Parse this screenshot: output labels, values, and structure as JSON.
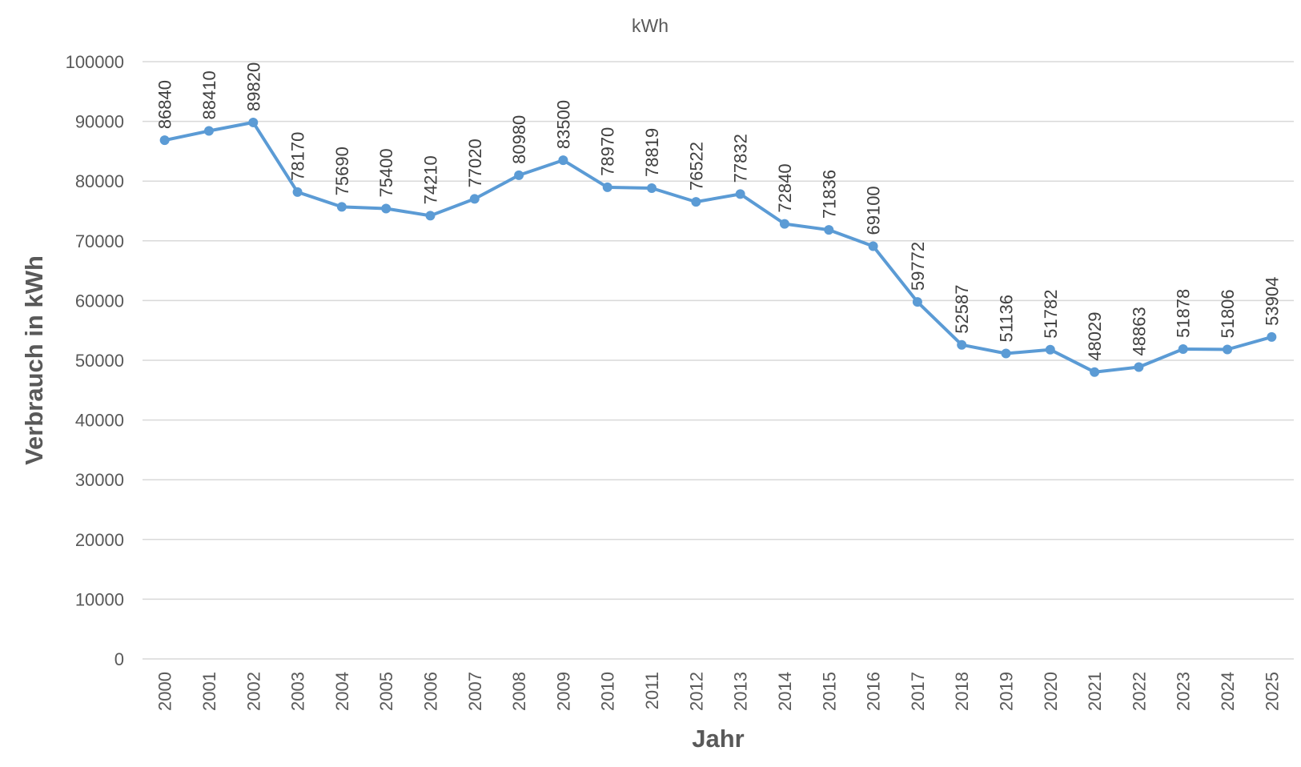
{
  "chart_data": {
    "type": "line",
    "title": "kWh",
    "xlabel": "Jahr",
    "ylabel": "Verbrauch in kWh",
    "ylim": [
      0,
      100000
    ],
    "ytick_step": 10000,
    "y_tick_labels": [
      "0",
      "10000",
      "20000",
      "30000",
      "40000",
      "50000",
      "60000",
      "70000",
      "80000",
      "90000",
      "100000"
    ],
    "grid": true,
    "legend": "none",
    "series_color": "#5B9BD5",
    "categories": [
      "2000",
      "2001",
      "2002",
      "2003",
      "2004",
      "2005",
      "2006",
      "2007",
      "2008",
      "2009",
      "2010",
      "2011",
      "2012",
      "2013",
      "2014",
      "2015",
      "2016",
      "2017",
      "2018",
      "2019",
      "2020",
      "2021",
      "2022",
      "2023",
      "2024",
      "2025"
    ],
    "series": [
      {
        "values": [
          86840,
          88410,
          89820,
          78170,
          75690,
          75400,
          74210,
          77020,
          80980,
          83500,
          78970,
          78819,
          76522,
          77832,
          72840,
          71836,
          69100,
          59772,
          52587,
          51136,
          51782,
          48029,
          48863,
          51878,
          51806,
          53904
        ]
      }
    ]
  }
}
